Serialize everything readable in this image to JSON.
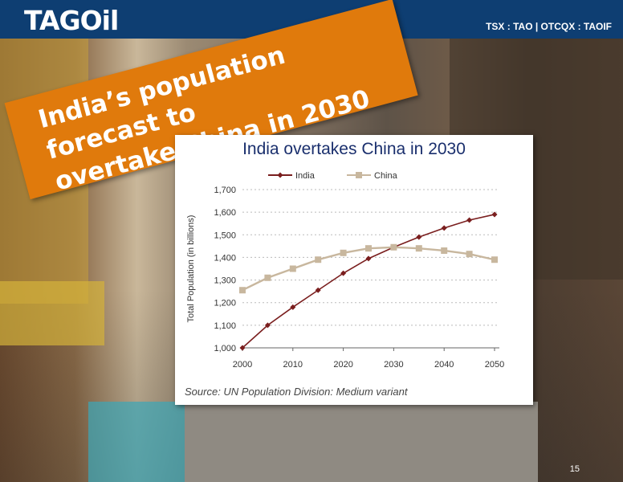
{
  "header": {
    "logo_text": "TAGOil",
    "ticker": "TSX : TAO | OTCQX : TAOIF"
  },
  "banner": {
    "line1": "India’s population forecast to",
    "line2": "overtake China in 2030"
  },
  "colors": {
    "header_bg": "#0e3e72",
    "banner_bg": "#e07a0c",
    "india": "#7a1e1e",
    "china": "#c8b79e",
    "title": "#1a2f6d"
  },
  "chart_data": {
    "type": "line",
    "title": "India overtakes China in 2030",
    "xlabel": "",
    "ylabel": "Total Population (in billions)",
    "x": [
      2000,
      2005,
      2010,
      2015,
      2020,
      2025,
      2030,
      2035,
      2040,
      2045,
      2050
    ],
    "xticks": [
      "2000",
      "2010",
      "2020",
      "2030",
      "2040",
      "2050"
    ],
    "yticks": [
      "1,000",
      "1,100",
      "1,200",
      "1,300",
      "1,400",
      "1,500",
      "1,600",
      "1,700"
    ],
    "ylim": [
      1000,
      1700
    ],
    "grid": true,
    "legend_position": "top",
    "series": [
      {
        "name": "India",
        "marker": "diamond",
        "values": [
          1000,
          1100,
          1180,
          1255,
          1330,
          1395,
          1445,
          1490,
          1530,
          1565,
          1590
        ]
      },
      {
        "name": "China",
        "marker": "square",
        "values": [
          1255,
          1310,
          1350,
          1390,
          1420,
          1440,
          1445,
          1440,
          1430,
          1415,
          1390
        ]
      }
    ]
  },
  "source_note": "Source: UN Population Division: Medium variant",
  "page_number": "15"
}
